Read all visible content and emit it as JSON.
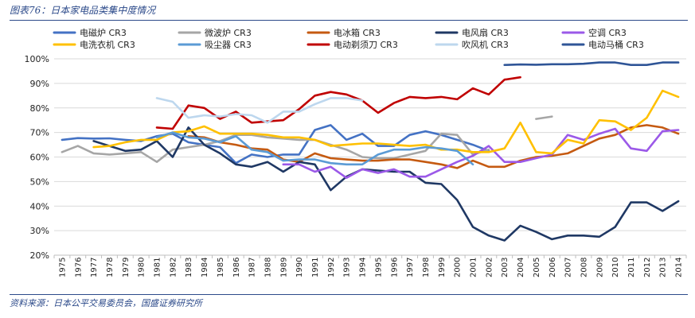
{
  "figure": {
    "title": "图表76：日本家电品类集中度情况",
    "source": "资料来源：日本公平交易委员会，国盛证券研究所"
  },
  "chart_data": {
    "type": "line",
    "title": "",
    "xlabel": "",
    "ylabel": "",
    "ylim": [
      20,
      100
    ],
    "yticks": [
      "20%",
      "30%",
      "40%",
      "50%",
      "60%",
      "70%",
      "80%",
      "90%",
      "100%"
    ],
    "x": [
      "1975",
      "1976",
      "1977",
      "1978",
      "1979",
      "1980",
      "1981",
      "1982",
      "1983",
      "1984",
      "1985",
      "1986",
      "1987",
      "1988",
      "1989",
      "1990",
      "1991",
      "1992",
      "1993",
      "1994",
      "1995",
      "1996",
      "1997",
      "1998",
      "1999",
      "2000",
      "2001",
      "2002",
      "2003",
      "2004",
      "2005",
      "2006",
      "2007",
      "2008",
      "2009",
      "2010",
      "2011",
      "2012",
      "2013",
      "2014"
    ],
    "series": [
      {
        "name": "电磁炉 CR3",
        "color": "#4472c4",
        "values": [
          67,
          67.7,
          67.5,
          67.6,
          67,
          66.5,
          68.5,
          69.5,
          66,
          65,
          64,
          57.5,
          61,
          60,
          61,
          61,
          71,
          73,
          67,
          69.5,
          64.5,
          64.5,
          69,
          70.5,
          69,
          67,
          65,
          62.5,
          null,
          null,
          null,
          null,
          null,
          null,
          null,
          null,
          null,
          null,
          null,
          null
        ]
      },
      {
        "name": "微波炉 CR3",
        "color": "#a6a6a6",
        "values": [
          62,
          64.5,
          61.5,
          61,
          61.5,
          62,
          58,
          63,
          64,
          65,
          66.5,
          69,
          69,
          68,
          67.5,
          67,
          67,
          65,
          63,
          60,
          59.5,
          59.5,
          61,
          62.5,
          69.5,
          69,
          61,
          63,
          null,
          null,
          75.5,
          76.5,
          null,
          null,
          null,
          null,
          null,
          null,
          null,
          null
        ]
      },
      {
        "name": "电冰箱 CR3",
        "color": "#c55a11",
        "values": [
          null,
          null,
          null,
          null,
          null,
          null,
          null,
          null,
          68.5,
          68,
          66,
          65,
          63.5,
          63,
          59,
          58,
          61.5,
          59.5,
          59,
          58.5,
          58.5,
          59,
          59,
          58,
          57,
          55.5,
          58.5,
          56,
          56,
          58.5,
          60,
          60.5,
          61.5,
          64.5,
          67.5,
          69,
          72,
          73,
          72,
          69.5
        ]
      },
      {
        "name": "电风扇 CR3",
        "color": "#1f3864",
        "values": [
          null,
          null,
          66.5,
          64.5,
          62.5,
          63,
          66.5,
          60,
          72,
          65,
          61.5,
          57,
          56,
          58,
          54,
          58,
          57,
          46.5,
          52,
          55,
          54.5,
          54,
          54,
          49.5,
          49,
          42.5,
          31.5,
          28,
          26,
          32,
          29.5,
          26.5,
          28,
          28,
          27.5,
          31.5,
          41.5,
          41.5,
          38,
          42
        ]
      },
      {
        "name": "空调 CR3",
        "color": "#9b59e8",
        "values": [
          null,
          null,
          null,
          null,
          null,
          null,
          null,
          null,
          null,
          null,
          null,
          null,
          null,
          null,
          57,
          57,
          54,
          56,
          51.5,
          55,
          53.5,
          55,
          52,
          52,
          55,
          58,
          60.5,
          64.5,
          58,
          58,
          59.5,
          61,
          69,
          67,
          69.5,
          71.5,
          63.5,
          62.5,
          70.5,
          71
        ]
      },
      {
        "name": "电洗衣机 CR3",
        "color": "#ffc000",
        "values": [
          null,
          null,
          64,
          64.5,
          66,
          67,
          67,
          70,
          70.5,
          72.5,
          69.5,
          69.5,
          69.5,
          69,
          68,
          68,
          67,
          64.5,
          65,
          65.5,
          65.5,
          65,
          64.5,
          65,
          63,
          63,
          62,
          62,
          63.5,
          74,
          62,
          61.5,
          67,
          65.5,
          75,
          74.5,
          71,
          76,
          87,
          84.5
        ]
      },
      {
        "name": "吸尘器 CR3",
        "color": "#5b9bd5",
        "values": [
          null,
          null,
          null,
          null,
          null,
          null,
          68,
          70,
          68,
          67.5,
          66,
          68.5,
          63,
          62,
          58.5,
          59,
          59,
          57.5,
          57,
          57,
          61,
          63,
          63,
          64,
          63.5,
          62.5,
          57,
          null,
          null,
          null,
          null,
          null,
          null,
          null,
          null,
          null,
          null,
          null,
          null,
          null
        ]
      },
      {
        "name": "电动剃须刀 CR3",
        "color": "#c00000",
        "values": [
          null,
          null,
          null,
          null,
          null,
          null,
          72,
          71.5,
          81,
          80,
          75.5,
          78.5,
          74,
          74.5,
          75,
          79.5,
          85,
          86.5,
          85.5,
          83,
          78,
          82,
          84.5,
          84,
          84.5,
          83.5,
          88,
          85.5,
          91.5,
          92.5,
          null,
          null,
          null,
          null,
          null,
          null,
          null,
          null,
          null,
          null
        ]
      },
      {
        "name": "吹风机 CR3",
        "color": "#bdd7ee",
        "values": [
          null,
          null,
          null,
          null,
          null,
          null,
          84,
          82.5,
          76,
          77,
          76.5,
          77.5,
          77,
          74,
          78.5,
          78.5,
          81.5,
          84,
          84,
          83,
          null,
          null,
          null,
          null,
          null,
          null,
          null,
          null,
          null,
          null,
          null,
          null,
          null,
          null,
          null,
          null,
          null,
          null,
          null,
          null
        ]
      },
      {
        "name": "电动马桶 CR3",
        "color": "#2f5597",
        "values": [
          null,
          null,
          null,
          null,
          null,
          null,
          null,
          null,
          null,
          null,
          null,
          null,
          null,
          null,
          null,
          null,
          null,
          null,
          null,
          null,
          null,
          null,
          null,
          null,
          null,
          null,
          null,
          null,
          97.5,
          97.7,
          97.6,
          97.8,
          97.8,
          98,
          98.5,
          98.5,
          97.5,
          97.5,
          98.5,
          98.5
        ]
      }
    ]
  }
}
